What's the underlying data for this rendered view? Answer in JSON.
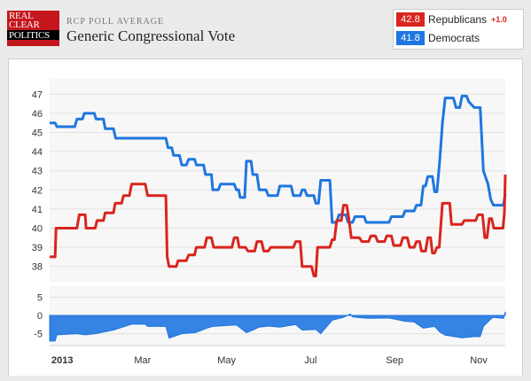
{
  "header": {
    "logo_lines": [
      "REAL",
      "CLEAR",
      "POLITICS"
    ],
    "kicker": "RCP POLL AVERAGE",
    "title": "Generic Congressional Vote"
  },
  "legend": {
    "items": [
      {
        "value": "42.8",
        "label": "Republicans",
        "change": "+1.0",
        "color": "#d9251d"
      },
      {
        "value": "41.8",
        "label": "Democrats",
        "change": "",
        "color": "#1f76e0"
      }
    ]
  },
  "chart_data": {
    "type": "line",
    "x_ticks": [
      "2013",
      "Mar",
      "May",
      "Jul",
      "Sep",
      "Nov"
    ],
    "main": {
      "y_ticks": [
        38,
        39,
        40,
        41,
        42,
        43,
        44,
        45,
        46,
        47
      ],
      "ylim": [
        37.2,
        47.8
      ],
      "xlim": [
        0,
        1
      ],
      "grid": true,
      "series": [
        {
          "name": "Republicans",
          "color": "#d9251d",
          "points": [
            [
              0.0,
              38.5
            ],
            [
              0.012,
              38.5
            ],
            [
              0.014,
              40.0
            ],
            [
              0.06,
              40.0
            ],
            [
              0.065,
              40.7
            ],
            [
              0.078,
              40.7
            ],
            [
              0.08,
              40.0
            ],
            [
              0.1,
              40.0
            ],
            [
              0.104,
              40.4
            ],
            [
              0.118,
              40.4
            ],
            [
              0.122,
              40.8
            ],
            [
              0.14,
              40.8
            ],
            [
              0.144,
              41.3
            ],
            [
              0.158,
              41.3
            ],
            [
              0.162,
              41.7
            ],
            [
              0.175,
              41.7
            ],
            [
              0.18,
              42.3
            ],
            [
              0.21,
              42.3
            ],
            [
              0.215,
              41.7
            ],
            [
              0.255,
              41.7
            ],
            [
              0.258,
              38.5
            ],
            [
              0.262,
              38.0
            ],
            [
              0.278,
              38.0
            ],
            [
              0.282,
              38.3
            ],
            [
              0.3,
              38.3
            ],
            [
              0.305,
              38.6
            ],
            [
              0.318,
              38.6
            ],
            [
              0.322,
              39.0
            ],
            [
              0.34,
              39.0
            ],
            [
              0.345,
              39.5
            ],
            [
              0.355,
              39.5
            ],
            [
              0.36,
              39.0
            ],
            [
              0.4,
              39.0
            ],
            [
              0.405,
              39.5
            ],
            [
              0.412,
              39.5
            ],
            [
              0.416,
              39.0
            ],
            [
              0.43,
              39.0
            ],
            [
              0.435,
              38.8
            ],
            [
              0.45,
              38.8
            ],
            [
              0.455,
              39.3
            ],
            [
              0.465,
              39.3
            ],
            [
              0.47,
              38.8
            ],
            [
              0.48,
              38.8
            ],
            [
              0.485,
              39.0
            ],
            [
              0.535,
              39.0
            ],
            [
              0.54,
              39.3
            ],
            [
              0.55,
              39.3
            ],
            [
              0.554,
              38.0
            ],
            [
              0.575,
              38.0
            ],
            [
              0.58,
              37.5
            ],
            [
              0.584,
              37.5
            ],
            [
              0.588,
              39.0
            ],
            [
              0.615,
              39.0
            ],
            [
              0.62,
              39.4
            ],
            [
              0.625,
              39.4
            ],
            [
              0.63,
              40.4
            ],
            [
              0.64,
              40.4
            ],
            [
              0.645,
              41.2
            ],
            [
              0.652,
              41.2
            ],
            [
              0.656,
              40.6
            ],
            [
              0.662,
              39.5
            ],
            [
              0.68,
              39.5
            ],
            [
              0.685,
              39.3
            ],
            [
              0.7,
              39.3
            ],
            [
              0.705,
              39.6
            ],
            [
              0.715,
              39.6
            ],
            [
              0.72,
              39.3
            ],
            [
              0.735,
              39.3
            ],
            [
              0.74,
              39.6
            ],
            [
              0.75,
              39.6
            ],
            [
              0.755,
              39.1
            ],
            [
              0.77,
              39.1
            ],
            [
              0.775,
              39.5
            ],
            [
              0.785,
              39.5
            ],
            [
              0.79,
              39.0
            ],
            [
              0.8,
              39.0
            ],
            [
              0.805,
              39.3
            ],
            [
              0.812,
              39.3
            ],
            [
              0.816,
              38.8
            ],
            [
              0.825,
              38.8
            ],
            [
              0.83,
              39.5
            ],
            [
              0.836,
              39.5
            ],
            [
              0.84,
              38.7
            ],
            [
              0.845,
              38.7
            ],
            [
              0.85,
              39.0
            ],
            [
              0.855,
              39.0
            ],
            [
              0.862,
              41.3
            ],
            [
              0.878,
              41.3
            ],
            [
              0.882,
              40.2
            ],
            [
              0.905,
              40.2
            ],
            [
              0.91,
              40.4
            ],
            [
              0.935,
              40.4
            ],
            [
              0.94,
              40.7
            ],
            [
              0.95,
              40.7
            ],
            [
              0.955,
              39.5
            ],
            [
              0.96,
              39.5
            ],
            [
              0.965,
              40.5
            ],
            [
              0.97,
              40.5
            ],
            [
              0.975,
              40.0
            ],
            [
              0.995,
              40.0
            ],
            [
              0.998,
              40.8
            ],
            [
              1.0,
              42.8
            ]
          ]
        },
        {
          "name": "Democrats",
          "color": "#1f76e0",
          "points": [
            [
              0.0,
              45.5
            ],
            [
              0.012,
              45.5
            ],
            [
              0.016,
              45.3
            ],
            [
              0.055,
              45.3
            ],
            [
              0.06,
              45.7
            ],
            [
              0.072,
              45.7
            ],
            [
              0.076,
              46.0
            ],
            [
              0.098,
              46.0
            ],
            [
              0.102,
              45.7
            ],
            [
              0.118,
              45.7
            ],
            [
              0.122,
              45.2
            ],
            [
              0.14,
              45.2
            ],
            [
              0.145,
              44.7
            ],
            [
              0.255,
              44.7
            ],
            [
              0.26,
              44.2
            ],
            [
              0.268,
              44.2
            ],
            [
              0.272,
              43.8
            ],
            [
              0.285,
              43.8
            ],
            [
              0.29,
              43.3
            ],
            [
              0.3,
              43.3
            ],
            [
              0.305,
              43.6
            ],
            [
              0.318,
              43.6
            ],
            [
              0.322,
              43.3
            ],
            [
              0.338,
              43.3
            ],
            [
              0.342,
              42.8
            ],
            [
              0.355,
              42.8
            ],
            [
              0.358,
              42.0
            ],
            [
              0.37,
              42.0
            ],
            [
              0.375,
              42.3
            ],
            [
              0.405,
              42.3
            ],
            [
              0.41,
              42.0
            ],
            [
              0.415,
              42.0
            ],
            [
              0.418,
              41.6
            ],
            [
              0.428,
              41.6
            ],
            [
              0.432,
              43.5
            ],
            [
              0.442,
              43.5
            ],
            [
              0.446,
              42.8
            ],
            [
              0.455,
              42.8
            ],
            [
              0.46,
              42.0
            ],
            [
              0.475,
              42.0
            ],
            [
              0.48,
              41.7
            ],
            [
              0.5,
              41.7
            ],
            [
              0.505,
              42.2
            ],
            [
              0.53,
              42.2
            ],
            [
              0.535,
              41.7
            ],
            [
              0.55,
              41.7
            ],
            [
              0.554,
              42.0
            ],
            [
              0.56,
              42.0
            ],
            [
              0.565,
              41.7
            ],
            [
              0.58,
              41.7
            ],
            [
              0.584,
              41.3
            ],
            [
              0.59,
              41.3
            ],
            [
              0.595,
              42.5
            ],
            [
              0.615,
              42.5
            ],
            [
              0.62,
              40.3
            ],
            [
              0.63,
              40.3
            ],
            [
              0.635,
              40.7
            ],
            [
              0.65,
              40.7
            ],
            [
              0.655,
              40.3
            ],
            [
              0.665,
              40.3
            ],
            [
              0.67,
              40.6
            ],
            [
              0.69,
              40.6
            ],
            [
              0.695,
              40.3
            ],
            [
              0.745,
              40.3
            ],
            [
              0.75,
              40.6
            ],
            [
              0.775,
              40.6
            ],
            [
              0.78,
              40.9
            ],
            [
              0.8,
              40.9
            ],
            [
              0.805,
              41.2
            ],
            [
              0.815,
              41.2
            ],
            [
              0.82,
              42.2
            ],
            [
              0.825,
              42.2
            ],
            [
              0.83,
              42.7
            ],
            [
              0.84,
              42.7
            ],
            [
              0.845,
              41.9
            ],
            [
              0.85,
              41.9
            ],
            [
              0.856,
              43.5
            ],
            [
              0.862,
              45.5
            ],
            [
              0.868,
              46.8
            ],
            [
              0.886,
              46.8
            ],
            [
              0.892,
              46.3
            ],
            [
              0.9,
              46.3
            ],
            [
              0.905,
              46.9
            ],
            [
              0.915,
              46.9
            ],
            [
              0.92,
              46.6
            ],
            [
              0.932,
              46.3
            ],
            [
              0.945,
              46.3
            ],
            [
              0.952,
              43.0
            ],
            [
              0.962,
              42.3
            ],
            [
              0.968,
              41.5
            ],
            [
              0.974,
              41.2
            ],
            [
              0.996,
              41.2
            ],
            [
              1.0,
              41.8
            ]
          ]
        }
      ]
    },
    "diff": {
      "y_ticks": [
        5,
        0,
        -5
      ],
      "ylim": [
        -8,
        8
      ],
      "color": "#1f76e0",
      "points": [
        [
          0.0,
          -7.0
        ],
        [
          0.012,
          -7.0
        ],
        [
          0.016,
          -5.3
        ],
        [
          0.06,
          -5.0
        ],
        [
          0.078,
          -5.3
        ],
        [
          0.1,
          -5.0
        ],
        [
          0.14,
          -4.0
        ],
        [
          0.18,
          -2.4
        ],
        [
          0.21,
          -2.4
        ],
        [
          0.215,
          -3.0
        ],
        [
          0.255,
          -3.0
        ],
        [
          0.262,
          -6.2
        ],
        [
          0.29,
          -5.0
        ],
        [
          0.32,
          -4.7
        ],
        [
          0.345,
          -3.5
        ],
        [
          0.358,
          -3.0
        ],
        [
          0.41,
          -2.6
        ],
        [
          0.432,
          -4.7
        ],
        [
          0.446,
          -4.0
        ],
        [
          0.46,
          -3.2
        ],
        [
          0.48,
          -2.9
        ],
        [
          0.505,
          -3.2
        ],
        [
          0.54,
          -2.5
        ],
        [
          0.554,
          -4.0
        ],
        [
          0.584,
          -3.8
        ],
        [
          0.595,
          -5.0
        ],
        [
          0.62,
          -1.3
        ],
        [
          0.645,
          -0.5
        ],
        [
          0.66,
          0.4
        ],
        [
          0.665,
          -0.4
        ],
        [
          0.68,
          -0.6
        ],
        [
          0.7,
          -0.8
        ],
        [
          0.745,
          -0.7
        ],
        [
          0.78,
          -1.6
        ],
        [
          0.8,
          -1.8
        ],
        [
          0.82,
          -3.5
        ],
        [
          0.845,
          -3.0
        ],
        [
          0.856,
          -4.5
        ],
        [
          0.868,
          -5.4
        ],
        [
          0.905,
          -6.1
        ],
        [
          0.932,
          -5.8
        ],
        [
          0.945,
          -5.8
        ],
        [
          0.952,
          -3.0
        ],
        [
          0.968,
          -1.0
        ],
        [
          0.974,
          -0.5
        ],
        [
          0.996,
          -0.8
        ],
        [
          1.0,
          1.0
        ]
      ]
    }
  }
}
